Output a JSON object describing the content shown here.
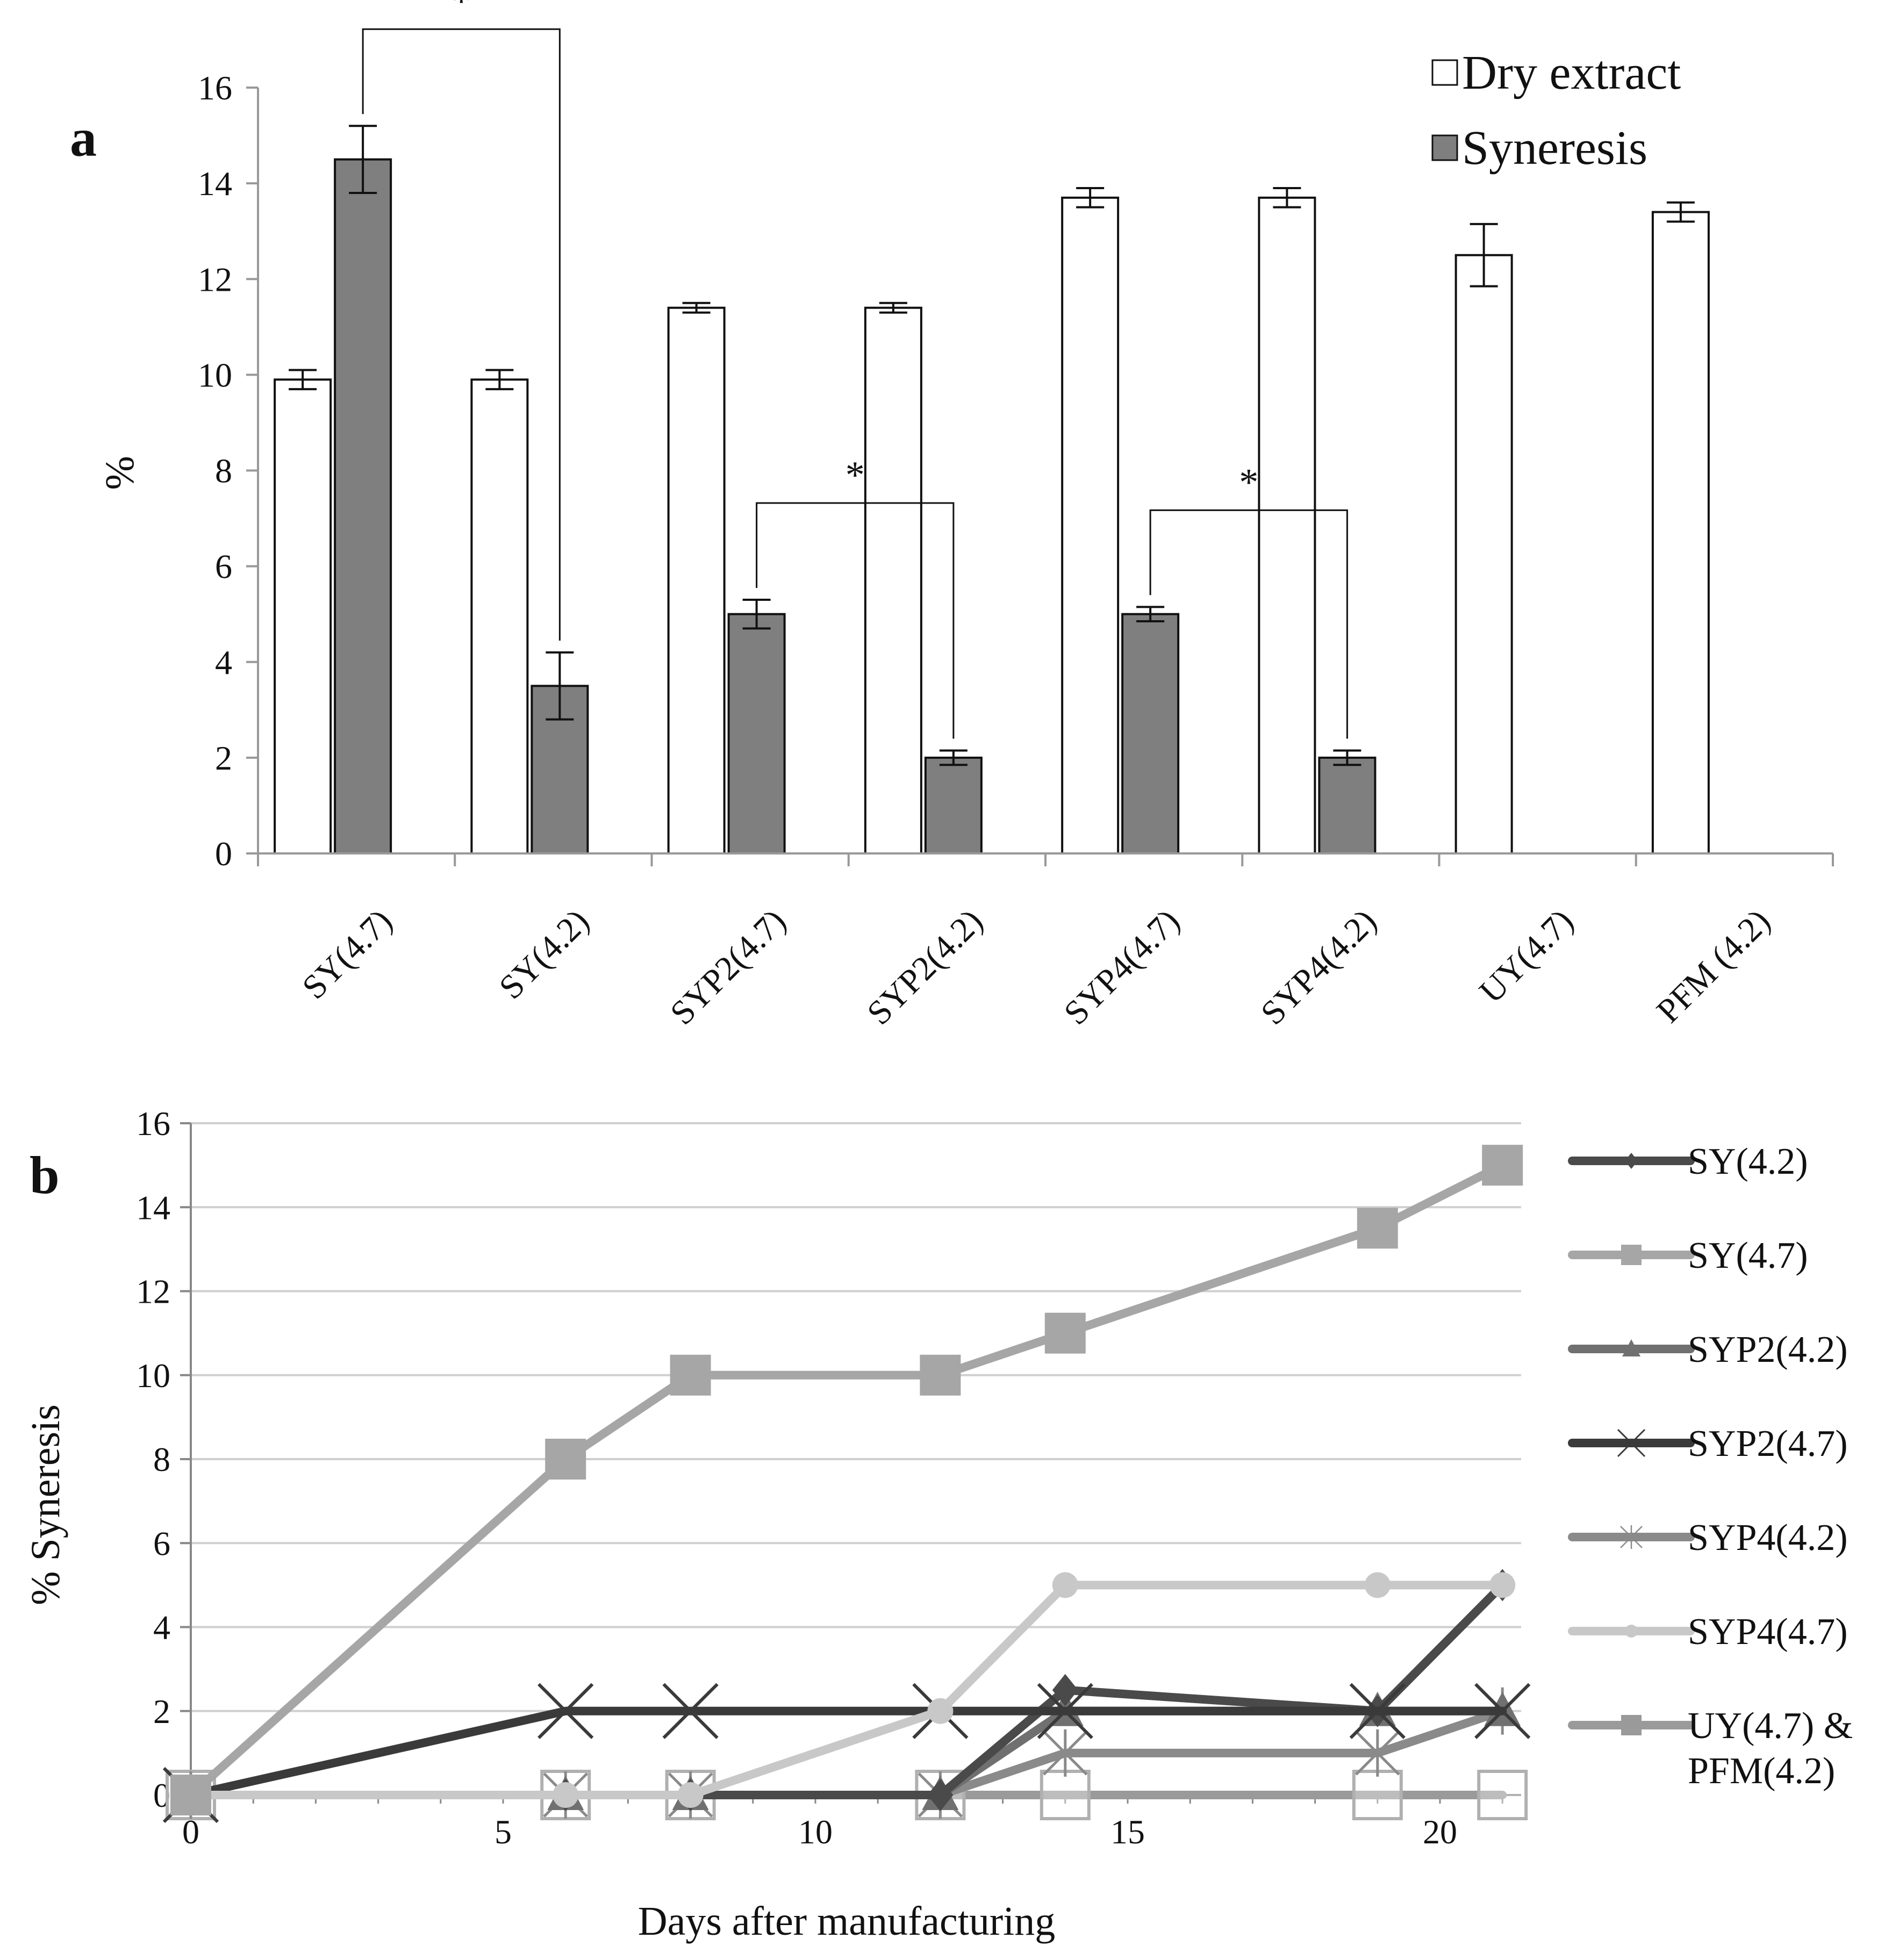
{
  "chart_data": [
    {
      "panel": "a",
      "type": "bar",
      "ylabel": "%",
      "ylim": [
        0,
        16
      ],
      "yticks": [
        0,
        2,
        4,
        6,
        8,
        10,
        12,
        14,
        16
      ],
      "categories": [
        "SY(4.7)",
        "SY(4.2)",
        "SYP2(4.7)",
        "SYP2(4.2)",
        "SYP4(4.7)",
        "SYP4(4.2)",
        "UY(4.7)",
        "PFM (4.2)"
      ],
      "series": [
        {
          "name": "Dry extract",
          "color": "#ffffff",
          "values": [
            9.9,
            9.9,
            11.4,
            11.4,
            13.7,
            13.7,
            12.5,
            13.4
          ],
          "errors": [
            0.2,
            0.2,
            0.1,
            0.1,
            0.2,
            0.2,
            0.65,
            0.2
          ]
        },
        {
          "name": "Syneresis",
          "color": "#7f7f7f",
          "values": [
            14.5,
            3.5,
            5.0,
            2.0,
            5.0,
            2.0,
            null,
            null
          ],
          "errors": [
            0.7,
            0.7,
            0.3,
            0.15,
            0.15,
            0.15,
            null,
            null
          ]
        }
      ],
      "significance": [
        {
          "from": 0,
          "to": 1,
          "label": "*"
        },
        {
          "from": 2,
          "to": 3,
          "label": "*"
        },
        {
          "from": 4,
          "to": 5,
          "label": "*"
        }
      ],
      "legend": "top-right"
    },
    {
      "panel": "b",
      "type": "line",
      "xlabel": "Days after manufacturing",
      "ylabel": "% Syneresis",
      "xlim": [
        0,
        21
      ],
      "ylim": [
        0,
        16
      ],
      "xticks": [
        0,
        5,
        10,
        15,
        20
      ],
      "yticks": [
        0,
        2,
        4,
        6,
        8,
        10,
        12,
        14,
        16
      ],
      "grid": true,
      "legend": "right",
      "series": [
        {
          "name": "SY(4.2)",
          "color": "#4a4a4a",
          "marker": "diamond",
          "x": [
            0,
            6,
            8,
            12,
            14,
            19,
            21
          ],
          "y": [
            0,
            0,
            0,
            0,
            2.5,
            2,
            5
          ]
        },
        {
          "name": "SY(4.7)",
          "color": "#a6a6a6",
          "marker": "square",
          "x": [
            0,
            6,
            8,
            12,
            14,
            19,
            21
          ],
          "y": [
            0,
            8,
            10,
            10,
            11,
            13.5,
            15
          ]
        },
        {
          "name": "SYP2(4.2)",
          "color": "#707070",
          "marker": "triangle",
          "x": [
            0,
            6,
            8,
            12,
            14,
            19,
            21
          ],
          "y": [
            0,
            0,
            0,
            0,
            2,
            2,
            2
          ]
        },
        {
          "name": "SYP2(4.7)",
          "color": "#3a3a3a",
          "marker": "x",
          "x": [
            0,
            6,
            8,
            12,
            14,
            19,
            21
          ],
          "y": [
            0,
            2,
            2,
            2,
            2,
            2,
            2
          ]
        },
        {
          "name": "SYP4(4.2)",
          "color": "#8a8a8a",
          "marker": "star",
          "x": [
            0,
            6,
            8,
            12,
            14,
            19,
            21
          ],
          "y": [
            0,
            0,
            0,
            0,
            1,
            1,
            2
          ]
        },
        {
          "name": "SYP4(4.7)",
          "color": "#c8c8c8",
          "marker": "circle",
          "x": [
            0,
            6,
            8,
            12,
            14,
            19,
            21
          ],
          "y": [
            0,
            0,
            0,
            2,
            5,
            5,
            5
          ]
        },
        {
          "name": "UY(4.7) & PFM(4.2)",
          "legend_lines": [
            "UY(4.7) &",
            "PFM(4.2)"
          ],
          "color": "#9a9a9a",
          "marker": "open-square",
          "x": [
            0,
            6,
            8,
            12,
            14,
            19,
            21
          ],
          "y": [
            0,
            0,
            0,
            0,
            0,
            0,
            0
          ]
        }
      ]
    }
  ]
}
